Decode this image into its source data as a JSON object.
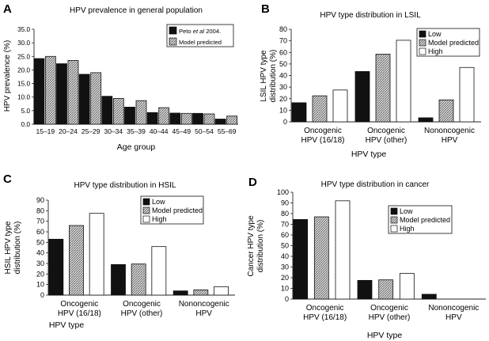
{
  "colors": {
    "observed": "#111111",
    "model": "#c9c9c9",
    "low": "#111111",
    "high": "#ffffff",
    "axis": "#222222"
  },
  "chart_data": [
    {
      "panel": "A",
      "type": "bar",
      "title": "HPV prevalence in general population",
      "xlabel": "Age group",
      "ylabel": "HPV prevalence (%)",
      "ylim": [
        0,
        35
      ],
      "yticks": [
        "0.0",
        "5.0",
        "10.0",
        "15.0",
        "20.0",
        "25.0",
        "30.0",
        "35.0"
      ],
      "categories": [
        "15–19",
        "20–24",
        "25–29",
        "30–34",
        "35–39",
        "40–44",
        "45–49",
        "50–54",
        "55–69"
      ],
      "legend": {
        "placement": "top-right",
        "entries": [
          {
            "pre": "Peto ",
            "italic": "et al",
            "post": " 2004."
          },
          {
            "pre": "Model predicted",
            "italic": "",
            "post": ""
          }
        ]
      },
      "series": [
        {
          "name": "Peto et al 2004.",
          "style": "solid",
          "values": [
            24.2,
            22.3,
            18.4,
            10.3,
            6.3,
            4.3,
            4.1,
            4.0,
            1.9
          ]
        },
        {
          "name": "Model predicted",
          "style": "hatch",
          "values": [
            25.0,
            23.5,
            19.0,
            9.5,
            8.7,
            6.1,
            4.0,
            3.8,
            3.0
          ]
        }
      ]
    },
    {
      "panel": "B",
      "type": "bar",
      "title": "HPV type distribution in LSIL",
      "xlabel": "HPV type",
      "ylabel": "LSIL HPV type distribution (%)",
      "ylim": [
        0,
        80
      ],
      "yticks": [
        "0",
        "10",
        "20",
        "30",
        "40",
        "50",
        "60",
        "70",
        "80"
      ],
      "categories": [
        [
          "Oncogenic",
          "HPV (16/18)"
        ],
        [
          "Oncogenic",
          "HPV (other)"
        ],
        [
          "Nononcogenic",
          "HPV"
        ]
      ],
      "legend": {
        "placement": "top-right",
        "entries": [
          {
            "pre": "Low",
            "italic": "",
            "post": ""
          },
          {
            "pre": "Model predicted",
            "italic": "",
            "post": ""
          },
          {
            "pre": "High",
            "italic": "",
            "post": ""
          }
        ]
      },
      "series": [
        {
          "name": "Low",
          "style": "solid",
          "values": [
            16.5,
            43.5,
            3.5
          ]
        },
        {
          "name": "Model predicted",
          "style": "hatch",
          "values": [
            22.5,
            58.5,
            19
          ]
        },
        {
          "name": "High",
          "style": "open",
          "values": [
            27.5,
            70.5,
            47
          ]
        }
      ]
    },
    {
      "panel": "C",
      "type": "bar",
      "title": "HPV type distribution in HSIL",
      "xlabel": "HPV type",
      "ylabel": "HSIL HPV type distribution (%)",
      "ylim": [
        0,
        90
      ],
      "yticks": [
        "0",
        "10",
        "20",
        "30",
        "40",
        "50",
        "60",
        "70",
        "80",
        "90"
      ],
      "categories": [
        [
          "Oncogenic",
          "HPV (16/18)"
        ],
        [
          "Oncogenic",
          "HPV (other)"
        ],
        [
          "Nononcogenic",
          "HPV"
        ]
      ],
      "legend": {
        "placement": "top-right",
        "entries": [
          {
            "pre": "Low",
            "italic": "",
            "post": ""
          },
          {
            "pre": "Model predicted",
            "italic": "",
            "post": ""
          },
          {
            "pre": "High",
            "italic": "",
            "post": ""
          }
        ]
      },
      "series": [
        {
          "name": "Low",
          "style": "solid",
          "values": [
            53,
            29,
            4
          ]
        },
        {
          "name": "Model predicted",
          "style": "hatch",
          "values": [
            66,
            29.5,
            5
          ]
        },
        {
          "name": "High",
          "style": "open",
          "values": [
            77.5,
            46,
            8
          ]
        }
      ]
    },
    {
      "panel": "D",
      "type": "bar",
      "title": "HPV type distribution in cancer",
      "xlabel": "HPV type",
      "ylabel": "Cancer HPV type distribution (%)",
      "ylim": [
        0,
        100
      ],
      "yticks": [
        "0",
        "10",
        "20",
        "30",
        "40",
        "50",
        "60",
        "70",
        "80",
        "90",
        "100"
      ],
      "categories": [
        [
          "Oncogenic",
          "HPV (16/18)"
        ],
        [
          "Oncogenic",
          "HPV (other)"
        ],
        [
          "Nononcogenic",
          "HPV"
        ]
      ],
      "legend": {
        "placement": "top-right",
        "entries": [
          {
            "pre": "Low",
            "italic": "",
            "post": ""
          },
          {
            "pre": "Model predicted",
            "italic": "",
            "post": ""
          },
          {
            "pre": "High",
            "italic": "",
            "post": ""
          }
        ]
      },
      "series": [
        {
          "name": "Low",
          "style": "solid",
          "values": [
            74.5,
            17.5,
            4.5
          ]
        },
        {
          "name": "Model predicted",
          "style": "hatch",
          "values": [
            77,
            18,
            0
          ]
        },
        {
          "name": "High",
          "style": "open",
          "values": [
            92,
            24,
            0
          ]
        }
      ]
    }
  ]
}
